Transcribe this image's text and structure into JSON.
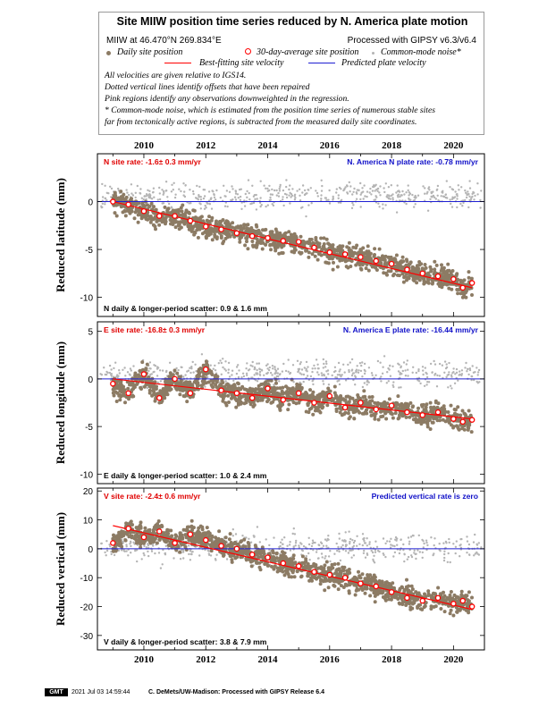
{
  "legend": {
    "title": "Site MIIW position time series reduced by N. America plate motion",
    "site_line": "MIIW at 46.470°N 269.834°E",
    "processed": "Processed with GIPSY v6.3/v6.4",
    "daily_label": "Daily site position",
    "avg_label": "30-day-average site position",
    "cm_label": "Common-mode noise*",
    "bestfit_label": "Best-fitting site velocity",
    "predicted_label": "Predicted plate velocity",
    "notes": [
      "All velocities are given relative to IGS14.",
      "Dotted vertical lines identify offsets that have been repaired",
      "Pink regions identify any observations downweighted in the regression.",
      "* Common-mode noise, which is estimated from the position time series of numerous stable sites",
      "far from tectonically active regions, is subtracted from the measured daily site coordinates."
    ]
  },
  "colors": {
    "daily": "#8c7b64",
    "average": "#ff0000",
    "common_mode": "#b4b4b4",
    "best_fit": "#ff0000",
    "predicted": "#1f1fd2",
    "rate_text_red": "#e00000",
    "rate_text_blue": "#1010c8"
  },
  "footer": {
    "logo": "GMT",
    "timestamp": "2021 Jul 03 14:59:44",
    "credit": "C. DeMets/UW-Madison: Processed with GIPSY Release 6.4"
  },
  "chart_data": [
    {
      "type": "scatter",
      "ylabel": "Reduced latitude (mm)",
      "xlim": [
        2008.5,
        2021.0
      ],
      "ylim": [
        -12,
        5
      ],
      "yticks": [
        0,
        -5,
        -10
      ],
      "xticks": [
        2010,
        2012,
        2014,
        2016,
        2018,
        2020
      ],
      "site_rate": "N site rate:  -1.6± 0.3 mm/yr",
      "plate_rate": "N. America N plate rate:  -0.78 mm/yr",
      "scatter_text": "N daily & longer-period scatter:   0.9 &   1.6 mm",
      "best_fit": {
        "start": [
          2009.0,
          0.0
        ],
        "end": [
          2020.6,
          -9.0
        ]
      },
      "predicted_line": 0,
      "average_series": {
        "x": [
          2009.0,
          2009.5,
          2010.0,
          2010.5,
          2011.0,
          2011.5,
          2012.0,
          2012.5,
          2013.0,
          2013.5,
          2014.0,
          2014.5,
          2015.0,
          2015.5,
          2016.0,
          2016.5,
          2017.0,
          2017.5,
          2018.0,
          2018.5,
          2019.0,
          2019.5,
          2020.0,
          2020.3,
          2020.6
        ],
        "y": [
          0.0,
          -0.3,
          -1.0,
          -1.5,
          -1.5,
          -2.0,
          -2.6,
          -2.9,
          -3.3,
          -3.6,
          -3.8,
          -4.1,
          -4.2,
          -4.8,
          -5.3,
          -5.5,
          -5.8,
          -6.2,
          -6.5,
          -7.1,
          -7.5,
          -7.8,
          -8.1,
          -9.0,
          -8.5
        ]
      }
    },
    {
      "type": "scatter",
      "ylabel": "Reduced longitude (mm)",
      "xlim": [
        2008.5,
        2021.0
      ],
      "ylim": [
        -11,
        6
      ],
      "yticks": [
        5,
        0,
        -5,
        -10
      ],
      "xticks": [
        2010,
        2012,
        2014,
        2016,
        2018,
        2020
      ],
      "site_rate": "E site rate:  -16.8± 0.3 mm/yr",
      "plate_rate": "N. America E plate rate:  -16.44 mm/yr",
      "scatter_text": "E daily & longer-period scatter:   1.0 &   2.4 mm",
      "best_fit": {
        "start": [
          2009.0,
          0.0
        ],
        "end": [
          2020.6,
          -4.2
        ]
      },
      "predicted_line": 0,
      "average_series": {
        "x": [
          2009.0,
          2009.5,
          2010.0,
          2010.5,
          2011.0,
          2011.5,
          2012.0,
          2012.5,
          2013.0,
          2013.5,
          2014.0,
          2014.5,
          2015.0,
          2015.5,
          2016.0,
          2016.5,
          2017.0,
          2017.5,
          2018.0,
          2018.5,
          2019.0,
          2019.5,
          2020.0,
          2020.3,
          2020.6
        ],
        "y": [
          -0.5,
          -1.5,
          0.5,
          -2.0,
          0.0,
          -1.5,
          1.0,
          -1.2,
          -1.5,
          -2.0,
          -1.0,
          -2.2,
          -1.5,
          -2.5,
          -1.8,
          -3.0,
          -2.5,
          -3.2,
          -2.8,
          -3.5,
          -3.8,
          -3.5,
          -4.2,
          -4.5,
          -4.3
        ]
      }
    },
    {
      "type": "scatter",
      "ylabel": "Reduced vertical (mm)",
      "xlim": [
        2008.5,
        2021.0
      ],
      "ylim": [
        -35,
        21
      ],
      "yticks": [
        20,
        10,
        0,
        -10,
        -20,
        -30
      ],
      "xticks": [
        2010,
        2012,
        2014,
        2016,
        2018,
        2020
      ],
      "site_rate": "V site rate:  -2.4± 0.6 mm/yr",
      "plate_rate": "Predicted vertical rate is zero",
      "scatter_text": "V daily & longer-period scatter:   3.8 &   7.9 mm",
      "best_fit": {
        "start": [
          2009.0,
          8.0
        ],
        "end": [
          2020.6,
          -21.0
        ]
      },
      "predicted_line": 0,
      "average_series": {
        "x": [
          2009.0,
          2009.5,
          2010.0,
          2010.5,
          2011.0,
          2011.5,
          2012.0,
          2012.5,
          2013.0,
          2013.5,
          2014.0,
          2014.5,
          2015.0,
          2015.5,
          2016.0,
          2016.5,
          2017.0,
          2017.5,
          2018.0,
          2018.5,
          2019.0,
          2019.5,
          2020.0,
          2020.3,
          2020.6
        ],
        "y": [
          2.0,
          7.0,
          4.0,
          6.0,
          2.0,
          5.0,
          3.0,
          1.0,
          0.0,
          -2.0,
          -3.0,
          -5.0,
          -6.0,
          -8.0,
          -9.0,
          -10.0,
          -12.0,
          -13.0,
          -15.0,
          -17.0,
          -18.0,
          -17.0,
          -19.0,
          -18.0,
          -20.0
        ]
      }
    }
  ]
}
